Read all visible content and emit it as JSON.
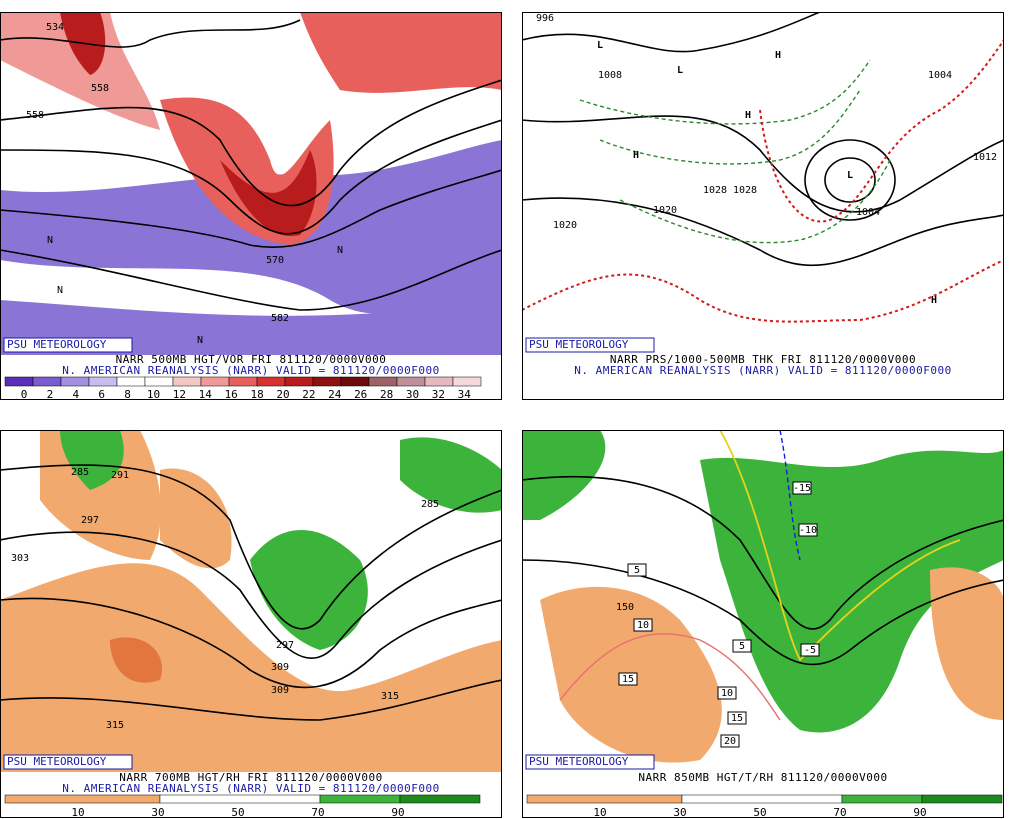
{
  "panels": [
    {
      "logo": "PSU METEOROLOGY",
      "caption": [
        "NARR 500MB HGT/VOR FRI 811120/0000V000",
        "N. AMERICAN REANALYSIS (NARR) VALID = 811120/0000F000"
      ],
      "colorbar": [
        0,
        2,
        4,
        6,
        8,
        10,
        12,
        14,
        16,
        18,
        20,
        22,
        24,
        26,
        28,
        30,
        32,
        34
      ],
      "map_labels": [
        "534",
        "558",
        "558",
        "570",
        "582",
        "N",
        "N",
        "N",
        "N"
      ]
    },
    {
      "logo": "PSU METEOROLOGY",
      "caption": [
        "NARR PRS/1000-500MB THK FRI 811120/0000V000",
        "N. AMERICAN REANALYSIS (NARR) VALID = 811120/0000F000"
      ],
      "colorbar": [],
      "map_labels": [
        "996",
        "1008",
        "1020",
        "1020",
        "1028",
        "1028",
        "1012",
        "1004",
        "1004",
        "L",
        "L",
        "L",
        "H",
        "H",
        "H",
        "H"
      ]
    },
    {
      "logo": "PSU METEOROLOGY",
      "caption": [
        "NARR 700MB HGT/RH FRI 811120/0000V000",
        "N. AMERICAN REANALYSIS (NARR) VALID = 811120/0000F000"
      ],
      "colorbar": [
        10,
        30,
        50,
        70,
        90
      ],
      "map_labels": [
        "285",
        "291",
        "297",
        "303",
        "309",
        "315",
        "315",
        "285",
        "297",
        "309"
      ]
    },
    {
      "logo": "PSU METEOROLOGY",
      "caption": [
        "NARR 850MB HGT/T/RH 811120/0000V000"
      ],
      "colorbar": [
        10,
        30,
        50,
        70,
        90
      ],
      "map_labels": [
        "-15",
        "-10",
        "-5",
        "5",
        "5",
        "10",
        "10",
        "15",
        "15",
        "20",
        "150"
      ]
    }
  ]
}
